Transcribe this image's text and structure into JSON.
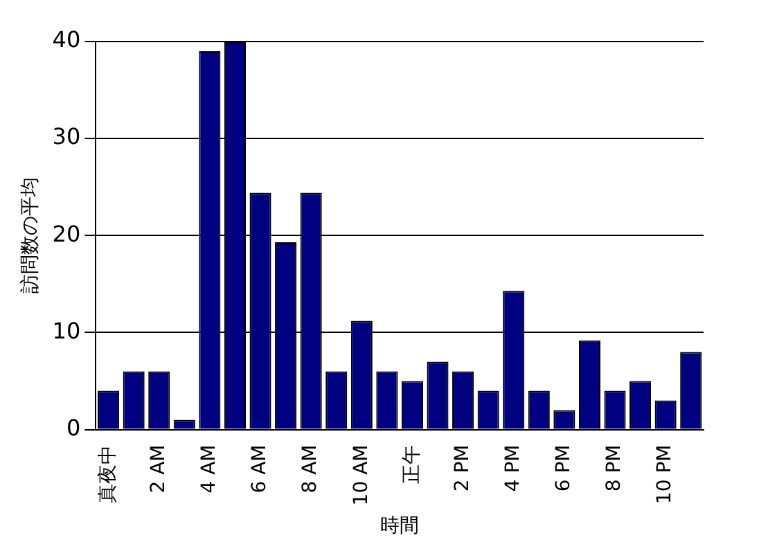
{
  "chart_data": {
    "type": "bar",
    "xlabel": "時間",
    "ylabel": "訪問数の平均",
    "categories": [
      "真夜中",
      null,
      "2 AM",
      null,
      "4 AM",
      null,
      "6 AM",
      null,
      "8 AM",
      null,
      "10 AM",
      null,
      "正午",
      null,
      "2 PM",
      null,
      "4 PM",
      null,
      "6 PM",
      null,
      "8 PM",
      null,
      "10 PM",
      null
    ],
    "values": [
      4,
      6,
      6,
      1,
      39,
      40,
      24.4,
      19.3,
      24.4,
      6,
      11.2,
      6,
      5,
      7,
      6,
      4,
      14.3,
      4,
      2,
      9.2,
      4,
      5,
      3,
      8
    ],
    "color": "#000080",
    "ylim": [
      0,
      40
    ],
    "yticks": [
      0,
      10,
      20,
      30,
      40
    ],
    "grid": "y",
    "legend": false
  }
}
